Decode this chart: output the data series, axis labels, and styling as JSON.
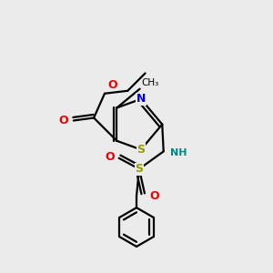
{
  "background_color": "#ebebeb",
  "colors": {
    "S": "#999900",
    "N": "#0000ee",
    "O": "#ee0000",
    "NH": "#008888",
    "C": "#000000"
  },
  "figsize": [
    3.0,
    3.0
  ],
  "dpi": 100
}
